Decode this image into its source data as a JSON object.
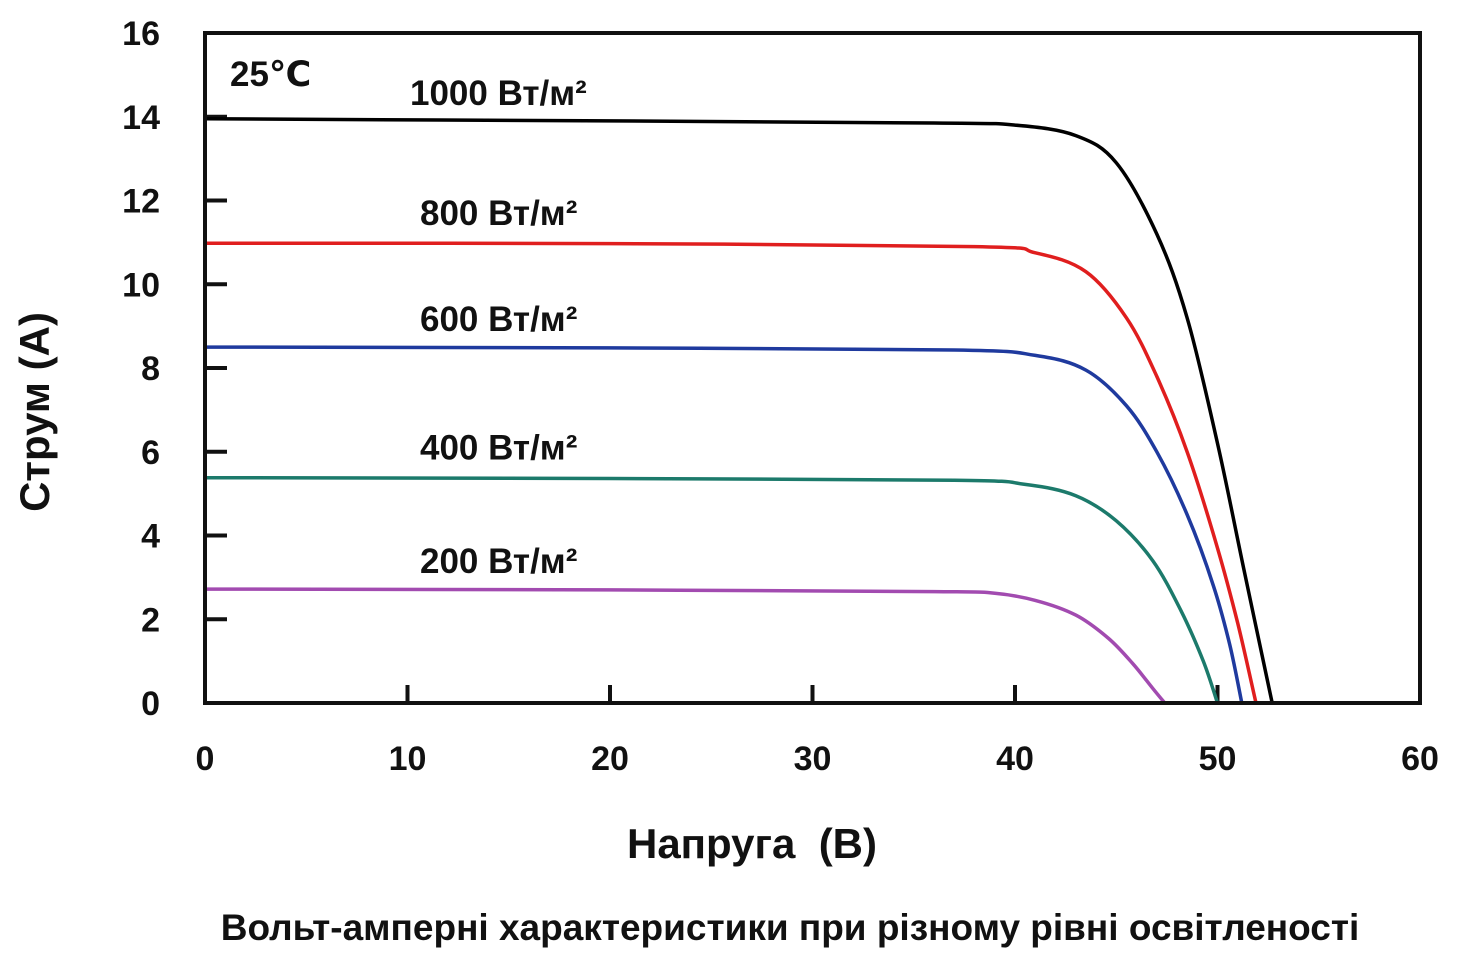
{
  "chart_data": {
    "type": "line",
    "title": "",
    "caption": "Вольт-амперні характеристики при різному рівні освітленості",
    "xlabel": "Напруга  (В)",
    "ylabel": "Струм (А)",
    "xlim": [
      0,
      60
    ],
    "ylim": [
      0,
      16
    ],
    "xticks": [
      "0",
      "10",
      "20",
      "30",
      "40",
      "50",
      "60"
    ],
    "yticks": [
      "0",
      "2",
      "4",
      "6",
      "8",
      "10",
      "12",
      "14",
      "16"
    ],
    "grid": false,
    "legend": "inline labels above each curve",
    "annotation": "25℃",
    "series": [
      {
        "name": "1000 Вт/м²",
        "color": "#000000",
        "isc": 13.95,
        "voc": 52.7,
        "points": [
          [
            0,
            13.95
          ],
          [
            20,
            13.9
          ],
          [
            36,
            13.85
          ],
          [
            40,
            13.8
          ],
          [
            43,
            13.55
          ],
          [
            45,
            12.9
          ],
          [
            47,
            11.2
          ],
          [
            48.5,
            9.2
          ],
          [
            50,
            6.2
          ],
          [
            51.3,
            3.2
          ],
          [
            52.7,
            0
          ]
        ]
      },
      {
        "name": "800 Вт/м²",
        "color": "#e01e1e",
        "isc": 10.98,
        "voc": 51.9,
        "points": [
          [
            0,
            10.98
          ],
          [
            20,
            10.97
          ],
          [
            38,
            10.9
          ],
          [
            41,
            10.75
          ],
          [
            43.5,
            10.3
          ],
          [
            45.5,
            9.2
          ],
          [
            47,
            7.8
          ],
          [
            48.5,
            6.0
          ],
          [
            50,
            3.7
          ],
          [
            51,
            1.9
          ],
          [
            51.9,
            0
          ]
        ]
      },
      {
        "name": "600 Вт/м²",
        "color": "#1f3a9e",
        "isc": 8.5,
        "voc": 51.2,
        "points": [
          [
            0,
            8.5
          ],
          [
            20,
            8.48
          ],
          [
            37,
            8.43
          ],
          [
            41,
            8.3
          ],
          [
            43.5,
            7.95
          ],
          [
            45.5,
            7.1
          ],
          [
            47,
            6.0
          ],
          [
            48.5,
            4.5
          ],
          [
            49.8,
            2.8
          ],
          [
            50.6,
            1.4
          ],
          [
            51.2,
            0
          ]
        ]
      },
      {
        "name": "400 Вт/м²",
        "color": "#1c7a6b",
        "isc": 5.38,
        "voc": 50.0,
        "points": [
          [
            0,
            5.38
          ],
          [
            20,
            5.36
          ],
          [
            37,
            5.32
          ],
          [
            40.5,
            5.22
          ],
          [
            43,
            4.95
          ],
          [
            45,
            4.35
          ],
          [
            46.8,
            3.4
          ],
          [
            48.2,
            2.2
          ],
          [
            49.3,
            1.0
          ],
          [
            50.0,
            0
          ]
        ]
      },
      {
        "name": "200 Вт/м²",
        "color": "#a24bb0",
        "isc": 2.72,
        "voc": 47.4,
        "points": [
          [
            0,
            2.72
          ],
          [
            20,
            2.7
          ],
          [
            36,
            2.66
          ],
          [
            39,
            2.62
          ],
          [
            41,
            2.45
          ],
          [
            43,
            2.1
          ],
          [
            44.6,
            1.55
          ],
          [
            45.8,
            0.95
          ],
          [
            46.8,
            0.35
          ],
          [
            47.4,
            0
          ]
        ]
      }
    ]
  }
}
